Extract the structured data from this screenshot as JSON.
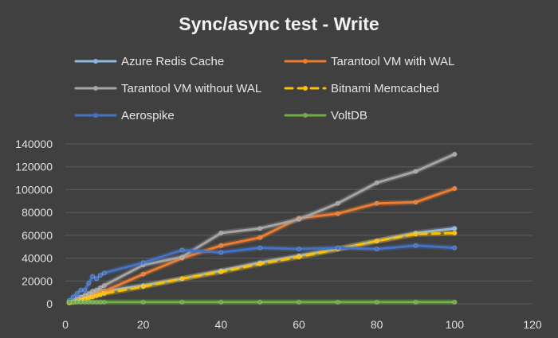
{
  "chart_data": {
    "type": "line",
    "title": "Sync/async test - Write",
    "xlabel": "",
    "ylabel": "",
    "xlim": [
      0,
      120
    ],
    "ylim": [
      0,
      140000
    ],
    "x_ticks": [
      "0",
      "20",
      "40",
      "60",
      "80",
      "100",
      "120"
    ],
    "y_ticks": [
      "0",
      "20000",
      "40000",
      "60000",
      "80000",
      "100000",
      "120000",
      "140000"
    ],
    "grid": "horizontal",
    "legend_position": "top",
    "background_color": "#404040",
    "series": [
      {
        "name": "Azure Redis Cache",
        "color": "#8fb8e0",
        "dashed": false,
        "points": [
          [
            1,
            2000
          ],
          [
            2,
            3000
          ],
          [
            3,
            4000
          ],
          [
            4,
            5000
          ],
          [
            5,
            6000
          ],
          [
            6,
            7000
          ],
          [
            7,
            8000
          ],
          [
            8,
            9000
          ],
          [
            9,
            10000
          ],
          [
            10,
            11000
          ],
          [
            20,
            16000
          ],
          [
            30,
            22000
          ],
          [
            40,
            29000
          ],
          [
            50,
            36000
          ],
          [
            60,
            42000
          ],
          [
            70,
            48000
          ],
          [
            80,
            55000
          ],
          [
            90,
            62000
          ],
          [
            100,
            66000
          ]
        ]
      },
      {
        "name": "Tarantool VM with WAL",
        "color": "#ed7d31",
        "dashed": false,
        "points": [
          [
            1,
            1000
          ],
          [
            2,
            2000
          ],
          [
            3,
            3000
          ],
          [
            4,
            4000
          ],
          [
            5,
            5000
          ],
          [
            6,
            6000
          ],
          [
            7,
            7000
          ],
          [
            8,
            9000
          ],
          [
            9,
            10000
          ],
          [
            10,
            11000
          ],
          [
            20,
            26000
          ],
          [
            30,
            40000
          ],
          [
            40,
            51000
          ],
          [
            50,
            58000
          ],
          [
            60,
            75000
          ],
          [
            70,
            79000
          ],
          [
            80,
            88000
          ],
          [
            90,
            89000
          ],
          [
            100,
            101000
          ]
        ]
      },
      {
        "name": "Tarantool VM without WAL",
        "color": "#a5a5a5",
        "dashed": false,
        "points": [
          [
            1,
            1500
          ],
          [
            2,
            3000
          ],
          [
            3,
            4500
          ],
          [
            4,
            6000
          ],
          [
            5,
            7500
          ],
          [
            6,
            9000
          ],
          [
            7,
            11000
          ],
          [
            8,
            12000
          ],
          [
            9,
            14000
          ],
          [
            10,
            16000
          ],
          [
            20,
            34000
          ],
          [
            30,
            41000
          ],
          [
            40,
            62000
          ],
          [
            50,
            66000
          ],
          [
            60,
            74000
          ],
          [
            70,
            88000
          ],
          [
            80,
            106000
          ],
          [
            90,
            116000
          ],
          [
            100,
            131000
          ]
        ]
      },
      {
        "name": "Bitnami Memcached",
        "color": "#ffc000",
        "dashed": true,
        "points": [
          [
            1,
            1000
          ],
          [
            2,
            1500
          ],
          [
            3,
            2000
          ],
          [
            4,
            3000
          ],
          [
            5,
            4000
          ],
          [
            6,
            5000
          ],
          [
            7,
            6000
          ],
          [
            8,
            7000
          ],
          [
            9,
            8000
          ],
          [
            10,
            9000
          ],
          [
            20,
            15000
          ],
          [
            30,
            22000
          ],
          [
            40,
            28000
          ],
          [
            50,
            35000
          ],
          [
            60,
            41000
          ],
          [
            70,
            48000
          ],
          [
            80,
            55000
          ],
          [
            90,
            61000
          ],
          [
            100,
            62000
          ]
        ]
      },
      {
        "name": "Aerospike",
        "color": "#4472c4",
        "dashed": false,
        "points": [
          [
            1,
            3000
          ],
          [
            2,
            6000
          ],
          [
            3,
            9000
          ],
          [
            4,
            12000
          ],
          [
            5,
            12000
          ],
          [
            6,
            18000
          ],
          [
            7,
            24000
          ],
          [
            8,
            22000
          ],
          [
            9,
            25000
          ],
          [
            10,
            27000
          ],
          [
            20,
            36000
          ],
          [
            30,
            47000
          ],
          [
            40,
            45000
          ],
          [
            50,
            49000
          ],
          [
            60,
            48000
          ],
          [
            70,
            49000
          ],
          [
            80,
            48000
          ],
          [
            90,
            51000
          ],
          [
            100,
            49000
          ]
        ]
      },
      {
        "name": "VoltDB",
        "color": "#70ad47",
        "dashed": false,
        "points": [
          [
            1,
            1500
          ],
          [
            2,
            1500
          ],
          [
            3,
            1500
          ],
          [
            4,
            1500
          ],
          [
            5,
            1500
          ],
          [
            6,
            1500
          ],
          [
            7,
            1500
          ],
          [
            8,
            1500
          ],
          [
            9,
            1500
          ],
          [
            10,
            1500
          ],
          [
            20,
            1500
          ],
          [
            30,
            1500
          ],
          [
            40,
            1500
          ],
          [
            50,
            1500
          ],
          [
            60,
            1500
          ],
          [
            70,
            1500
          ],
          [
            80,
            1500
          ],
          [
            90,
            1500
          ],
          [
            100,
            1500
          ]
        ]
      }
    ]
  }
}
